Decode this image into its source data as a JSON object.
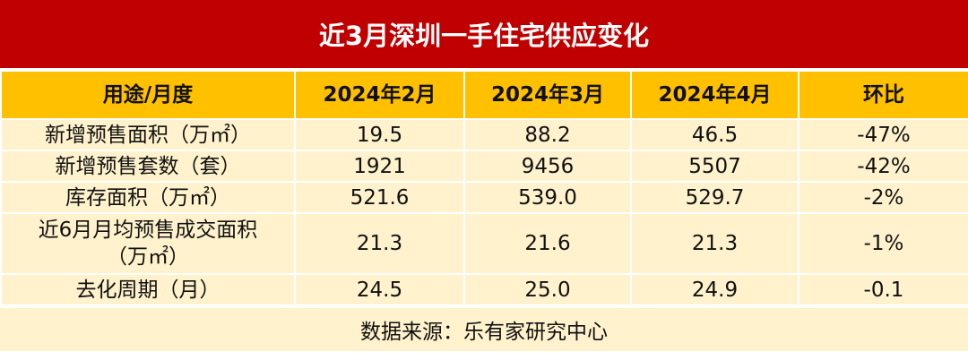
{
  "title": "近3月深圳一手住宅供应变化",
  "table": {
    "header": [
      "用途/月度",
      "2024年2月",
      "2024年3月",
      "2024年4月",
      "环比"
    ],
    "rows": [
      [
        "新增预售面积（万㎡）",
        "19.5",
        "88.2",
        "46.5",
        "-47%"
      ],
      [
        "新增预售套数（套）",
        "1921",
        "9456",
        "5507",
        "-42%"
      ],
      [
        "库存面积（万㎡）",
        "521.6",
        "539.0",
        "529.7",
        "-2%"
      ],
      [
        "近6月月均预售成交面积（万㎡）",
        "21.3",
        "21.6",
        "21.3",
        "-1%"
      ],
      [
        "去化周期（月）",
        "24.5",
        "25.0",
        "24.9",
        "-0.1"
      ]
    ]
  },
  "source": "数据来源：乐有家研究中心"
}
